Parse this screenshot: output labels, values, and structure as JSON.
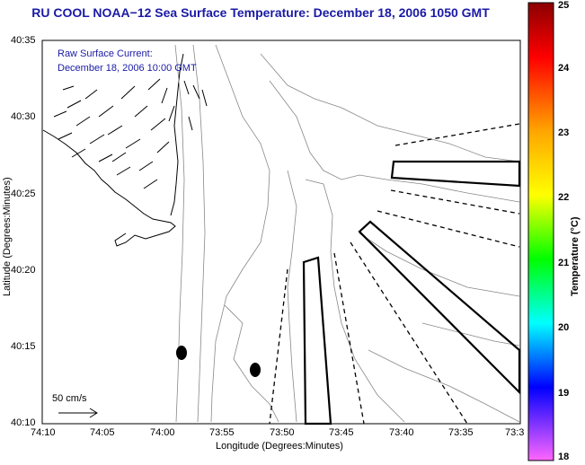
{
  "title": "RU COOL  NOAA−12  Sea Surface Temperature:  December 18, 2006 1050 GMT",
  "legend": {
    "line1": "Raw Surface Current:",
    "line2": "December 18, 2006 10:00 GMT",
    "scale_label": "50 cm/s"
  },
  "axes": {
    "xlabel": "Longitude (Degrees:Minutes)",
    "ylabel": "Latitude (Degrees:Minutes)",
    "x_ticks": [
      "74:10",
      "74:05",
      "74:00",
      "73:55",
      "73:50",
      "73:45",
      "73:40",
      "73:35",
      "73:3"
    ],
    "y_ticks": [
      "40:35",
      "40:30",
      "40:25",
      "40:20",
      "40:15",
      "40:10"
    ]
  },
  "colorbar": {
    "title": "Temperature (°C)",
    "ticks": [
      "25",
      "24",
      "23",
      "22",
      "21",
      "20",
      "19",
      "18"
    ],
    "colors": [
      "#a00000",
      "#ff0000",
      "#ff7f00",
      "#ffff00",
      "#00ff00",
      "#00ffff",
      "#0000ff",
      "#ff00ff"
    ]
  }
}
